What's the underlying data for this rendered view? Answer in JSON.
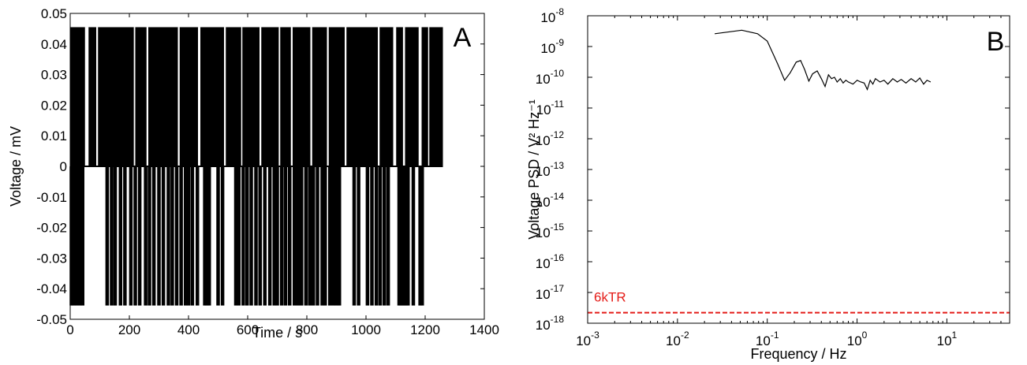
{
  "chart_data": [
    {
      "type": "line",
      "panel_label": "A",
      "xlabel": "Time / s",
      "ylabel": "Voltage / mV",
      "xlim": [
        0,
        1400
      ],
      "ylim": [
        -0.05,
        0.05
      ],
      "x_ticks": [
        0,
        200,
        400,
        600,
        800,
        1000,
        1200,
        1400
      ],
      "x_tick_labels": [
        "0",
        "200",
        "400",
        "600",
        "800",
        "1000",
        "1200",
        "1400"
      ],
      "y_ticks": [
        -0.05,
        -0.04,
        -0.03,
        -0.02,
        -0.01,
        0,
        0.01,
        0.02,
        0.03,
        0.04,
        0.05
      ],
      "y_tick_labels": [
        "-0.05",
        "-0.04",
        "-0.03",
        "-0.02",
        "-0.01",
        "0",
        "0.01",
        "0.02",
        "0.03",
        "0.04",
        "0.05"
      ],
      "levels": {
        "high": 0.0455,
        "low": -0.0455,
        "baseline": 0
      },
      "signal_range": [
        0,
        1260
      ],
      "negative_switching_times": [
        4,
        12,
        22,
        33,
        42,
        125,
        140,
        152,
        170,
        185,
        205,
        220,
        235,
        255,
        268,
        283,
        300,
        315,
        332,
        345,
        360,
        375,
        390,
        400,
        413,
        430,
        455,
        462,
        470,
        500,
        515,
        560,
        570,
        585,
        598,
        612,
        628,
        642,
        658,
        675,
        690,
        700,
        715,
        728,
        742,
        758,
        770,
        782,
        797,
        810,
        822,
        836,
        852,
        862,
        878,
        890,
        900,
        910,
        960,
        975,
        1005,
        1020,
        1035,
        1048,
        1062,
        1075,
        1112,
        1118,
        1124,
        1130,
        1136,
        1142,
        1160,
        1183,
        1190
      ],
      "positive_gaps": [
        [
          50,
          62
        ],
        [
          88,
          94
        ],
        [
          215,
          220
        ],
        [
          258,
          264
        ],
        [
          364,
          370
        ],
        [
          432,
          440
        ],
        [
          520,
          526
        ],
        [
          578,
          582
        ],
        [
          640,
          646
        ],
        [
          705,
          710
        ],
        [
          746,
          752
        ],
        [
          812,
          818
        ],
        [
          868,
          874
        ],
        [
          928,
          934
        ],
        [
          1040,
          1046
        ],
        [
          1092,
          1102
        ],
        [
          1125,
          1132
        ],
        [
          1178,
          1188
        ],
        [
          1210,
          1214
        ]
      ],
      "grid": false
    },
    {
      "type": "line",
      "panel_label": "B",
      "xlabel": "Frequency / Hz",
      "ylabel": "Voltage PSD / V² Hz⁻¹",
      "x_scale": "log",
      "y_scale": "log",
      "xlim": [
        0.001,
        50
      ],
      "ylim": [
        1e-18,
        1e-08
      ],
      "x_tick_labels": [
        {
          "base": "10",
          "exp": "-3"
        },
        {
          "base": "10",
          "exp": "-2"
        },
        {
          "base": "10",
          "exp": "-1"
        },
        {
          "base": "10",
          "exp": "0"
        },
        {
          "base": "10",
          "exp": "1"
        }
      ],
      "y_tick_labels": [
        {
          "base": "10",
          "exp": "-18"
        },
        {
          "base": "10",
          "exp": "-17"
        },
        {
          "base": "10",
          "exp": "-16"
        },
        {
          "base": "10",
          "exp": "-15"
        },
        {
          "base": "10",
          "exp": "-14"
        },
        {
          "base": "10",
          "exp": "-13"
        },
        {
          "base": "10",
          "exp": "-12"
        },
        {
          "base": "10",
          "exp": "-11"
        },
        {
          "base": "10",
          "exp": "-10"
        },
        {
          "base": "10",
          "exp": "-9"
        },
        {
          "base": "10",
          "exp": "-8"
        }
      ],
      "psd_series": {
        "x": [
          0.026,
          0.052,
          0.078,
          0.1,
          0.13,
          0.156,
          0.18,
          0.21,
          0.235,
          0.26,
          0.29,
          0.32,
          0.36,
          0.4,
          0.44,
          0.48,
          0.52,
          0.56,
          0.6,
          0.65,
          0.7,
          0.75,
          0.8,
          0.9,
          1.0,
          1.1,
          1.2,
          1.3,
          1.4,
          1.5,
          1.6,
          1.8,
          2.0,
          2.2,
          2.5,
          2.8,
          3.1,
          3.5,
          4.0,
          4.5,
          5.0,
          5.5,
          6.0,
          6.6
        ],
        "y": [
          2.6e-09,
          3.4e-09,
          2.6e-09,
          1.5e-09,
          2.8e-10,
          8e-11,
          1.4e-10,
          3.1e-10,
          3.5e-10,
          1.8e-10,
          7.5e-11,
          1.3e-10,
          1.6e-10,
          9e-11,
          5e-11,
          1.2e-10,
          9e-11,
          1e-10,
          7e-11,
          9e-11,
          6.5e-11,
          8e-11,
          7e-11,
          6e-11,
          8e-11,
          7e-11,
          6.5e-11,
          4e-11,
          8e-11,
          6e-11,
          9e-11,
          7e-11,
          8e-11,
          6e-11,
          9e-11,
          7e-11,
          8.5e-11,
          6.5e-11,
          9e-11,
          7e-11,
          9.5e-11,
          6e-11,
          8e-11,
          7e-11
        ]
      },
      "reference_line": {
        "label": "6kTR",
        "y": 2.2e-18,
        "color": "#e41b17",
        "style": "dashed"
      },
      "grid": false
    }
  ]
}
